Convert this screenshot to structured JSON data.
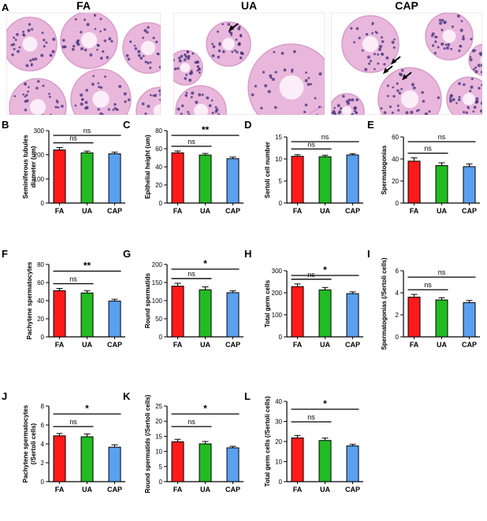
{
  "colors": {
    "FA": "#ff1a1a",
    "UA": "#22bb22",
    "CAP": "#5aa0f0",
    "axis": "#000000",
    "tissue_bg": "#e9b7dc",
    "lumen": "#ffffff",
    "nucleus": "#3b2f7a"
  },
  "histology": {
    "panel_letter": "A",
    "images": [
      {
        "title": "FA",
        "arrows": 0
      },
      {
        "title": "UA",
        "arrows": 1
      },
      {
        "title": "CAP",
        "arrows": 3
      }
    ]
  },
  "chart_data": [
    {
      "letter": "B",
      "type": "bar",
      "ylabel_lines": [
        "Seminiferous tubules",
        "diameter (um)"
      ],
      "categories": [
        "FA",
        "UA",
        "CAP"
      ],
      "values": [
        220,
        208,
        204
      ],
      "errors": [
        10,
        7,
        7
      ],
      "ylim": [
        0,
        300
      ],
      "yticks": [
        "0",
        "100",
        "200",
        "300"
      ],
      "significance": [
        {
          "label": "ns",
          "from": 0,
          "to": 1
        },
        {
          "label": "ns",
          "from": 0,
          "to": 2
        }
      ]
    },
    {
      "letter": "C",
      "type": "bar",
      "ylabel_lines": [
        "Epithelial height (um)"
      ],
      "categories": [
        "FA",
        "UA",
        "CAP"
      ],
      "values": [
        55.5,
        53,
        49
      ],
      "errors": [
        2,
        1.8,
        1.8
      ],
      "ylim": [
        0,
        80
      ],
      "yticks": [
        "0",
        "20",
        "40",
        "60",
        "80"
      ],
      "significance": [
        {
          "label": "ns",
          "from": 0,
          "to": 1
        },
        {
          "label": "**",
          "from": 0,
          "to": 2
        }
      ]
    },
    {
      "letter": "D",
      "type": "bar",
      "ylabel_lines": [
        "Sertoli cell number"
      ],
      "categories": [
        "FA",
        "UA",
        "CAP"
      ],
      "values": [
        10.6,
        10.5,
        10.9
      ],
      "errors": [
        0.35,
        0.35,
        0.3
      ],
      "ylim": [
        0,
        15
      ],
      "yticks": [
        "0",
        "5",
        "10",
        "15"
      ],
      "significance": [
        {
          "label": "ns",
          "from": 0,
          "to": 1
        },
        {
          "label": "ns",
          "from": 0,
          "to": 2
        }
      ]
    },
    {
      "letter": "E",
      "type": "bar",
      "ylabel_lines": [
        "Spermatogonias"
      ],
      "categories": [
        "FA",
        "UA",
        "CAP"
      ],
      "values": [
        38,
        34,
        33
      ],
      "errors": [
        3,
        2.5,
        2.5
      ],
      "ylim": [
        0,
        60
      ],
      "yticks": [
        "0",
        "20",
        "40",
        "60"
      ],
      "significance": [
        {
          "label": "ns",
          "from": 0,
          "to": 1
        },
        {
          "label": "ns",
          "from": 0,
          "to": 2
        }
      ]
    },
    {
      "letter": "F",
      "type": "bar",
      "ylabel_lines": [
        "Pachytene spermatocytes"
      ],
      "categories": [
        "FA",
        "UA",
        "CAP"
      ],
      "values": [
        51,
        48.5,
        39.5
      ],
      "errors": [
        2.5,
        2.5,
        2
      ],
      "ylim": [
        0,
        80
      ],
      "yticks": [
        "0",
        "20",
        "40",
        "60",
        "80"
      ],
      "significance": [
        {
          "label": "ns",
          "from": 0,
          "to": 1
        },
        {
          "label": "**",
          "from": 0,
          "to": 2
        }
      ]
    },
    {
      "letter": "G",
      "type": "bar",
      "ylabel_lines": [
        "Round spermatids"
      ],
      "categories": [
        "FA",
        "UA",
        "CAP"
      ],
      "values": [
        140,
        130,
        122
      ],
      "errors": [
        8,
        8,
        5
      ],
      "ylim": [
        0,
        200
      ],
      "yticks": [
        "0",
        "50",
        "100",
        "150",
        "200"
      ],
      "significance": [
        {
          "label": "ns",
          "from": 0,
          "to": 1
        },
        {
          "label": "*",
          "from": 0,
          "to": 2
        }
      ]
    },
    {
      "letter": "H",
      "type": "bar",
      "ylabel_lines": [
        "Total germ cells"
      ],
      "categories": [
        "FA",
        "UA",
        "CAP"
      ],
      "values": [
        228,
        213,
        196
      ],
      "errors": [
        12,
        11,
        8
      ],
      "ylim": [
        0,
        300
      ],
      "yticks": [
        "0",
        "100",
        "200",
        "300"
      ],
      "significance": [
        {
          "label": "ns",
          "from": 0,
          "to": 1
        },
        {
          "label": "*",
          "from": 0,
          "to": 2
        }
      ]
    },
    {
      "letter": "I",
      "type": "bar",
      "ylabel_lines": [
        "Spermatogonias (/Sertoli cells)"
      ],
      "categories": [
        "FA",
        "UA",
        "CAP"
      ],
      "values": [
        3.6,
        3.35,
        3.1
      ],
      "errors": [
        0.25,
        0.2,
        0.2
      ],
      "ylim": [
        0,
        6
      ],
      "yticks": [
        "0",
        "2",
        "4",
        "6"
      ],
      "significance": [
        {
          "label": "ns",
          "from": 0,
          "to": 1
        },
        {
          "label": "ns",
          "from": 0,
          "to": 2
        }
      ]
    },
    {
      "letter": "J",
      "type": "bar",
      "ylabel_lines": [
        "Pachytene spermatocytes",
        "(/Sertoli cells)"
      ],
      "categories": [
        "FA",
        "UA",
        "CAP"
      ],
      "values": [
        4.85,
        4.75,
        3.65
      ],
      "errors": [
        0.25,
        0.3,
        0.25
      ],
      "ylim": [
        0,
        8
      ],
      "yticks": [
        "0",
        "2",
        "4",
        "6",
        "8"
      ],
      "significance": [
        {
          "label": "ns",
          "from": 0,
          "to": 1
        },
        {
          "label": "*",
          "from": 0,
          "to": 2
        }
      ]
    },
    {
      "letter": "K",
      "type": "bar",
      "ylabel_lines": [
        "Round spermatids (/Sertoli cells)"
      ],
      "categories": [
        "FA",
        "UA",
        "CAP"
      ],
      "values": [
        13.2,
        12.5,
        11.2
      ],
      "errors": [
        0.8,
        0.8,
        0.5
      ],
      "ylim": [
        0,
        25
      ],
      "yticks": [
        "0",
        "5",
        "10",
        "15",
        "20",
        "25"
      ],
      "significance": [
        {
          "label": "ns",
          "from": 0,
          "to": 1
        },
        {
          "label": "*",
          "from": 0,
          "to": 2
        }
      ]
    },
    {
      "letter": "L",
      "type": "bar",
      "ylabel_lines": [
        "Total germ cells (/Sertoli cells)"
      ],
      "categories": [
        "FA",
        "UA",
        "CAP"
      ],
      "values": [
        21.8,
        20.5,
        17.8
      ],
      "errors": [
        1.2,
        1.2,
        0.8
      ],
      "ylim": [
        0,
        40
      ],
      "yticks": [
        "0",
        "10",
        "20",
        "30",
        "40"
      ],
      "significance": [
        {
          "label": "ns",
          "from": 0,
          "to": 1
        },
        {
          "label": "*",
          "from": 0,
          "to": 2
        }
      ]
    }
  ]
}
